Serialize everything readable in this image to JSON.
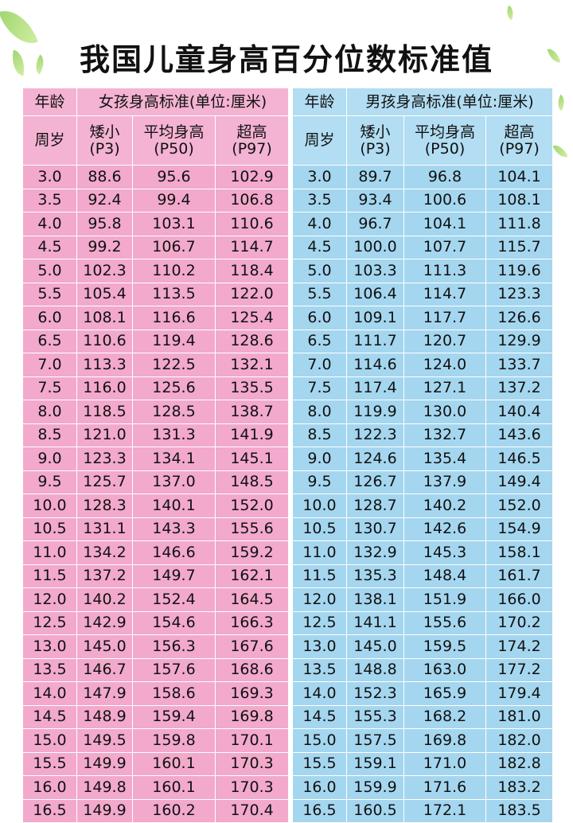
{
  "title": "我国儿童身高百分位数标准值",
  "colors": {
    "girl_bg": "#f2a9cc",
    "boy_bg": "#a5d6ef",
    "leaf": "#8fcf5a"
  },
  "girls": {
    "age_header": "年龄",
    "age_subheader": "周岁",
    "title": "女孩身高标准(单位:厘米)",
    "cols": [
      {
        "name": "矮小",
        "code": "(P3)"
      },
      {
        "name": "平均身高",
        "code": "(P50)"
      },
      {
        "name": "超高",
        "code": "(P97)"
      }
    ],
    "rows": [
      [
        "3.0",
        "88.6",
        "95.6",
        "102.9"
      ],
      [
        "3.5",
        "92.4",
        "99.4",
        "106.8"
      ],
      [
        "4.0",
        "95.8",
        "103.1",
        "110.6"
      ],
      [
        "4.5",
        "99.2",
        "106.7",
        "114.7"
      ],
      [
        "5.0",
        "102.3",
        "110.2",
        "118.4"
      ],
      [
        "5.5",
        "105.4",
        "113.5",
        "122.0"
      ],
      [
        "6.0",
        "108.1",
        "116.6",
        "125.4"
      ],
      [
        "6.5",
        "110.6",
        "119.4",
        "128.6"
      ],
      [
        "7.0",
        "113.3",
        "122.5",
        "132.1"
      ],
      [
        "7.5",
        "116.0",
        "125.6",
        "135.5"
      ],
      [
        "8.0",
        "118.5",
        "128.5",
        "138.7"
      ],
      [
        "8.5",
        "121.0",
        "131.3",
        "141.9"
      ],
      [
        "9.0",
        "123.3",
        "134.1",
        "145.1"
      ],
      [
        "9.5",
        "125.7",
        "137.0",
        "148.5"
      ],
      [
        "10.0",
        "128.3",
        "140.1",
        "152.0"
      ],
      [
        "10.5",
        "131.1",
        "143.3",
        "155.6"
      ],
      [
        "11.0",
        "134.2",
        "146.6",
        "159.2"
      ],
      [
        "11.5",
        "137.2",
        "149.7",
        "162.1"
      ],
      [
        "12.0",
        "140.2",
        "152.4",
        "164.5"
      ],
      [
        "12.5",
        "142.9",
        "154.6",
        "166.3"
      ],
      [
        "13.0",
        "145.0",
        "156.3",
        "167.6"
      ],
      [
        "13.5",
        "146.7",
        "157.6",
        "168.6"
      ],
      [
        "14.0",
        "147.9",
        "158.6",
        "169.3"
      ],
      [
        "14.5",
        "148.9",
        "159.4",
        "169.8"
      ],
      [
        "15.0",
        "149.5",
        "159.8",
        "170.1"
      ],
      [
        "15.5",
        "149.9",
        "160.1",
        "170.3"
      ],
      [
        "16.0",
        "149.8",
        "160.1",
        "170.3"
      ],
      [
        "16.5",
        "149.9",
        "160.2",
        "170.4"
      ]
    ]
  },
  "boys": {
    "age_header": "年龄",
    "age_subheader": "周岁",
    "title": "男孩身高标准(单位:厘米)",
    "cols": [
      {
        "name": "矮小",
        "code": "(P3)"
      },
      {
        "name": "平均身高",
        "code": "(P50)"
      },
      {
        "name": "超高",
        "code": "(P97)"
      }
    ],
    "rows": [
      [
        "3.0",
        "89.7",
        "96.8",
        "104.1"
      ],
      [
        "3.5",
        "93.4",
        "100.6",
        "108.1"
      ],
      [
        "4.0",
        "96.7",
        "104.1",
        "111.8"
      ],
      [
        "4.5",
        "100.0",
        "107.7",
        "115.7"
      ],
      [
        "5.0",
        "103.3",
        "111.3",
        "119.6"
      ],
      [
        "5.5",
        "106.4",
        "114.7",
        "123.3"
      ],
      [
        "6.0",
        "109.1",
        "117.7",
        "126.6"
      ],
      [
        "6.5",
        "111.7",
        "120.7",
        "129.9"
      ],
      [
        "7.0",
        "114.6",
        "124.0",
        "133.7"
      ],
      [
        "7.5",
        "117.4",
        "127.1",
        "137.2"
      ],
      [
        "8.0",
        "119.9",
        "130.0",
        "140.4"
      ],
      [
        "8.5",
        "122.3",
        "132.7",
        "143.6"
      ],
      [
        "9.0",
        "124.6",
        "135.4",
        "146.5"
      ],
      [
        "9.5",
        "126.7",
        "137.9",
        "149.4"
      ],
      [
        "10.0",
        "128.7",
        "140.2",
        "152.0"
      ],
      [
        "10.5",
        "130.7",
        "142.6",
        "154.9"
      ],
      [
        "11.0",
        "132.9",
        "145.3",
        "158.1"
      ],
      [
        "11.5",
        "135.3",
        "148.4",
        "161.7"
      ],
      [
        "12.0",
        "138.1",
        "151.9",
        "166.0"
      ],
      [
        "12.5",
        "141.1",
        "155.6",
        "170.2"
      ],
      [
        "13.0",
        "145.0",
        "159.5",
        "174.2"
      ],
      [
        "13.5",
        "148.8",
        "163.0",
        "177.2"
      ],
      [
        "14.0",
        "152.3",
        "165.9",
        "179.4"
      ],
      [
        "14.5",
        "155.3",
        "168.2",
        "181.0"
      ],
      [
        "15.0",
        "157.5",
        "169.8",
        "182.0"
      ],
      [
        "15.5",
        "159.1",
        "171.0",
        "182.8"
      ],
      [
        "16.0",
        "159.9",
        "171.6",
        "183.2"
      ],
      [
        "16.5",
        "160.5",
        "172.1",
        "183.5"
      ]
    ]
  }
}
